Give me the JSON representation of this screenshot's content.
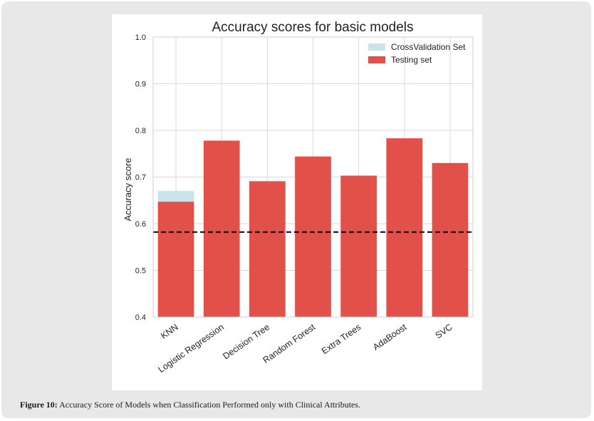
{
  "chart_data": {
    "type": "bar",
    "title": "Accuracy scores for basic models",
    "xlabel": "",
    "ylabel": "Accuracy score",
    "categories": [
      "KNN",
      "Logistic Regression",
      "Decision Tree",
      "Random Forest",
      "Extra Trees",
      "AdaBoost",
      "SVC"
    ],
    "series": [
      {
        "name": "CrossValidation Set",
        "values": [
          0.67,
          0.77,
          0.69,
          0.74,
          0.7,
          0.78,
          0.73
        ],
        "color": "#c8e3ea"
      },
      {
        "name": "Testing set",
        "values": [
          0.647,
          0.778,
          0.691,
          0.744,
          0.703,
          0.783,
          0.73
        ],
        "color": "#e2504a"
      }
    ],
    "ylim": [
      0.4,
      1.0
    ],
    "yticks": [
      "0.4",
      "0.5",
      "0.6",
      "0.7",
      "0.8",
      "0.9",
      "1.0"
    ],
    "reference_line": {
      "value": 0.582,
      "style": "dashed",
      "color": "#000000"
    },
    "grid": true,
    "legend_position": "top-right"
  },
  "caption": {
    "label": "Figure 10:",
    "text": " Accuracy Score of Models when Classification Performed only with Clinical Attributes."
  }
}
